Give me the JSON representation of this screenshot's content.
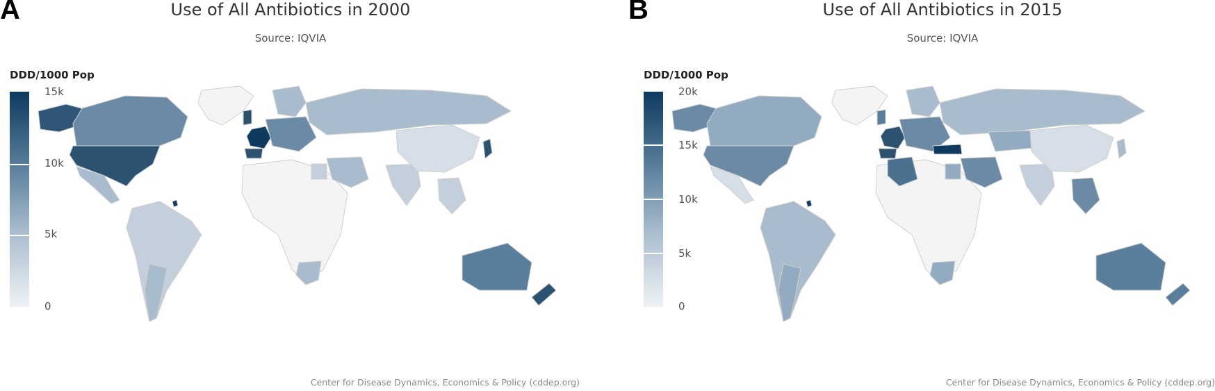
{
  "colors": {
    "dark": "#0d3a5e",
    "mid": "#5a7f9d",
    "light": "#a9bccd",
    "pale": "#d6dfe8",
    "nodata": "#f4f4f4"
  },
  "panels": [
    {
      "letter": "A",
      "title": "Use of All Antibiotics in 2000",
      "subtitle": "Source: IQVIA",
      "legend_title": "DDD/1000 Pop",
      "legend_ticks": [
        "15k",
        "10k",
        "5k",
        "0"
      ],
      "credit": "Center for Disease Dynamics, Economics & Policy (cddep.org)"
    },
    {
      "letter": "B",
      "title": "Use of All Antibiotics in 2015",
      "subtitle": "Source: IQVIA",
      "legend_title": "DDD/1000 Pop",
      "legend_ticks": [
        "20k",
        "15k",
        "10k",
        "5k",
        "0"
      ],
      "credit": "Center for Disease Dynamics, Economics & Policy (cddep.org)"
    }
  ]
}
